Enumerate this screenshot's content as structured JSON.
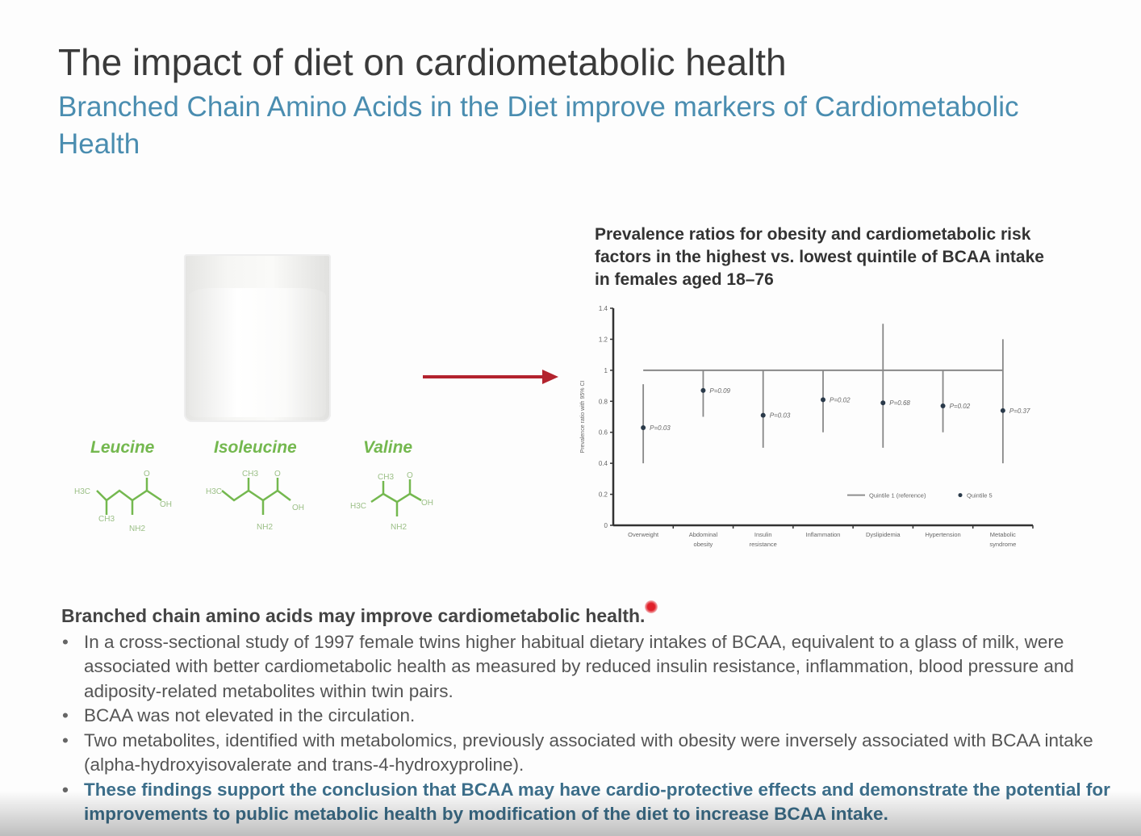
{
  "slide": {
    "title": "The impact of diet on cardiometabolic  health",
    "subtitle": "Branched Chain Amino Acids in the Diet improve markers of Cardiometabolic Health",
    "amino_acids": [
      {
        "name": "Leucine",
        "labels": [
          "H3C",
          "CH3",
          "O",
          "OH",
          "NH2"
        ]
      },
      {
        "name": "Isoleucine",
        "labels": [
          "H3C",
          "CH3",
          "O",
          "OH",
          "NH2"
        ]
      },
      {
        "name": "Valine",
        "labels": [
          "H3C",
          "CH3",
          "O",
          "OH",
          "NH2"
        ]
      }
    ],
    "colors": {
      "title": "#3a3a3a",
      "subtitle": "#4a8db0",
      "amino_acid": "#74b84f",
      "arrow": "#b3232e",
      "conclusion": "#3c6e8a"
    },
    "body": {
      "heading": "Branched chain amino acids may improve cardiometabolic health.",
      "bullets": [
        "In a cross-sectional study of 1997 female twins higher habitual dietary intakes of BCAA, equivalent to a glass of milk, were associated with better cardiometabolic health as measured by reduced insulin resistance, inflammation, blood pressure and adiposity-related metabolites within twin pairs.",
        "BCAA was not elevated in the circulation.",
        "Two metabolites, identified with metabolomics, previously associated with obesity were inversely associated with BCAA intake (alpha-hydroxyisovalerate  and trans-4-hydroxyproline).",
        "These findings support the conclusion that BCAA may have cardio-protective effects and demonstrate the potential for improvements to public metabolic health by modification of the diet to increase BCAA intake."
      ]
    }
  },
  "chart_data": {
    "type": "scatter",
    "title": "Prevalence ratios for obesity and cardiometabolic risk factors in the highest vs. lowest quintile of BCAA  intake in females aged 18–76",
    "ylabel": "Prevalence ratio with 95% CI",
    "xlabel": "",
    "ylim": [
      0,
      1.4
    ],
    "yticks": [
      "0",
      "0.2",
      "0.4",
      "0.6",
      "0.8",
      "1",
      "1.2",
      "1.4"
    ],
    "categories": [
      "Overweight",
      "Abdominal obesity",
      "Insulin resistance",
      "Inflammation",
      "Dyslipidemia",
      "Hypertension",
      "Metabolic syndrome"
    ],
    "reference_value": 1,
    "series": [
      {
        "name": "Quintile 5",
        "values": [
          0.63,
          0.87,
          0.71,
          0.81,
          0.79,
          0.77,
          0.74
        ],
        "ci_low": [
          0.4,
          0.7,
          0.5,
          0.6,
          0.5,
          0.6,
          0.4
        ],
        "ci_high": [
          0.91,
          1.0,
          1.0,
          1.0,
          1.3,
          1.0,
          1.2
        ],
        "p_labels": [
          "P=0.03",
          "P=0.09",
          "P=0.03",
          "P=0.02",
          "P=0.68",
          "P=0.02",
          "P=0.37"
        ]
      }
    ],
    "legend": {
      "items": [
        "Quintile 1 (reference)",
        "Quintile 5"
      ],
      "placement": "bottom-right"
    },
    "grid": false
  }
}
